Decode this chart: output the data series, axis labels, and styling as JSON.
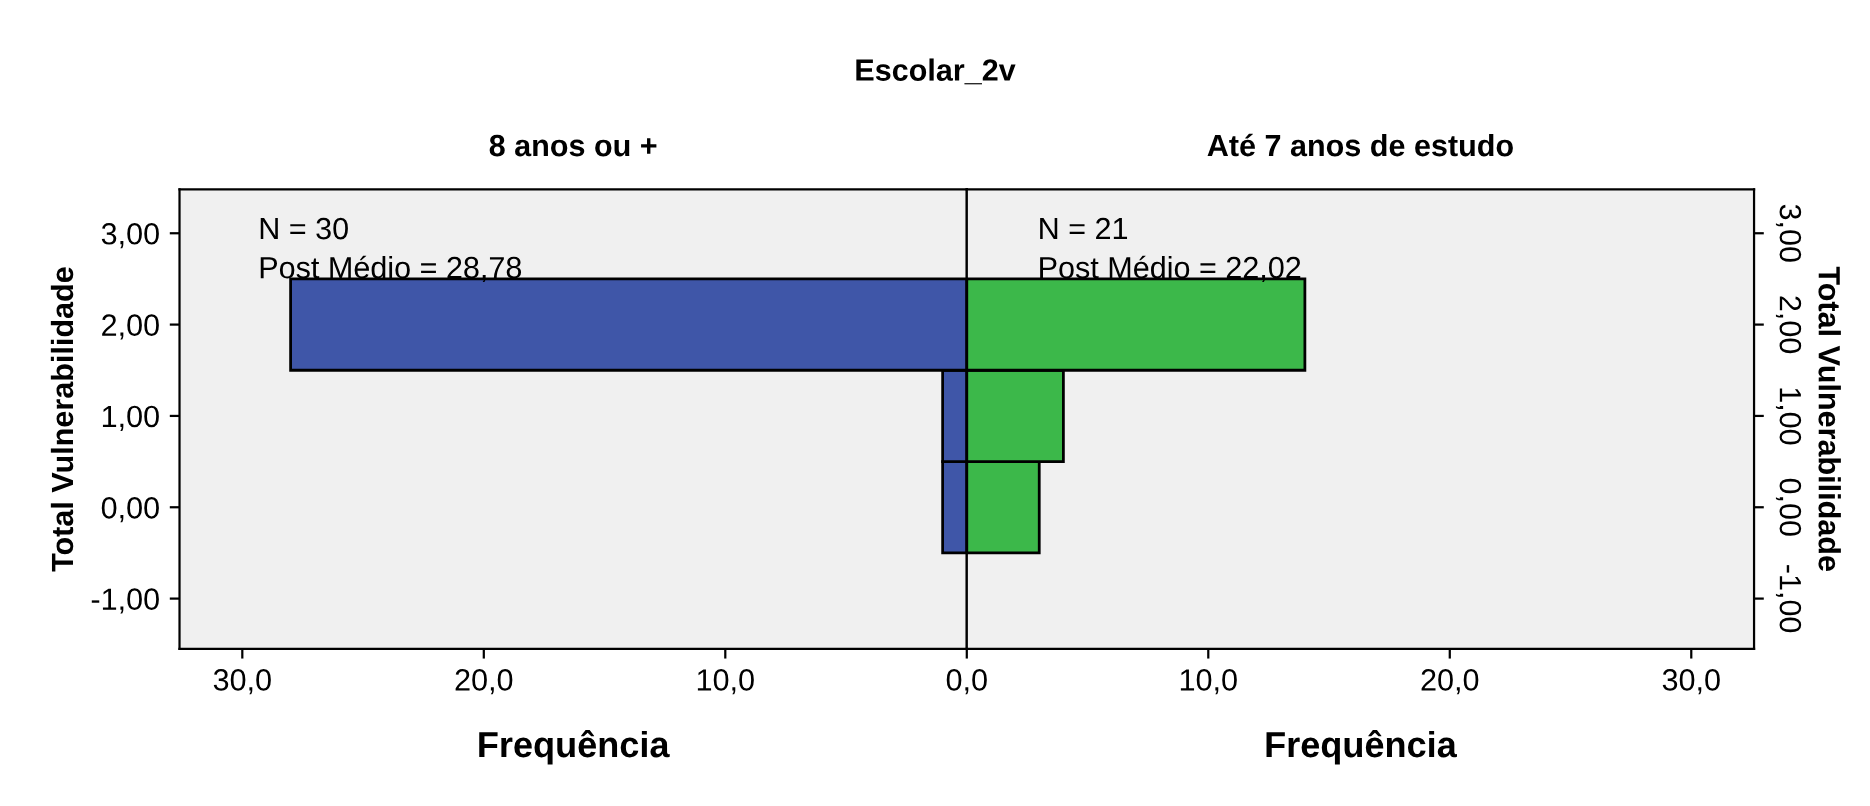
{
  "chart_data": [
    {
      "type": "histogram",
      "orientation": "horizontal",
      "title": "Escolar_2v",
      "subtitle": "8 anos ou +",
      "xlabel": "Frequência",
      "ylabel": "Total Vulnerabilidade",
      "bins": [
        -0.5,
        0.5,
        1.5,
        2.5
      ],
      "values": [
        1,
        1,
        28
      ],
      "color": "#3f56a8",
      "xlim": [
        32.6,
        0
      ],
      "xticks": [
        {
          "value": 30,
          "label": "30,0"
        },
        {
          "value": 20,
          "label": "20,0"
        },
        {
          "value": 10,
          "label": "10,0"
        }
      ],
      "ylim": [
        -1.55,
        3.48
      ],
      "yticks": [
        {
          "value": -1,
          "label": "-1,00"
        },
        {
          "value": 0,
          "label": "0,00"
        },
        {
          "value": 1,
          "label": "1,00"
        },
        {
          "value": 2,
          "label": "2,00"
        },
        {
          "value": 3,
          "label": "3,00"
        }
      ],
      "annotations": [
        "N = 30",
        "Post Médio = 28,78"
      ],
      "grid": false
    },
    {
      "type": "histogram",
      "orientation": "horizontal",
      "subtitle": "Até 7 anos de estudo",
      "xlabel": "Frequência",
      "ylabel": "Total Vulnerabilidade",
      "bins": [
        -0.5,
        0.5,
        1.5,
        2.5
      ],
      "values": [
        3,
        4,
        14
      ],
      "color": "#3cb84a",
      "xlim": [
        0,
        32.6
      ],
      "xticks": [
        {
          "value": 0,
          "label": "0,0"
        },
        {
          "value": 10,
          "label": "10,0"
        },
        {
          "value": 20,
          "label": "20,0"
        },
        {
          "value": 30,
          "label": "30,0"
        }
      ],
      "ylim": [
        -1.55,
        3.48
      ],
      "yticks": [
        {
          "value": -1,
          "label": "-1,00"
        },
        {
          "value": 0,
          "label": "0,00"
        },
        {
          "value": 1,
          "label": "1,00"
        },
        {
          "value": 2,
          "label": "2,00"
        },
        {
          "value": 3,
          "label": "3,00"
        }
      ],
      "annotations": [
        "N = 21",
        "Post Médio = 22,02"
      ],
      "grid": false
    }
  ]
}
